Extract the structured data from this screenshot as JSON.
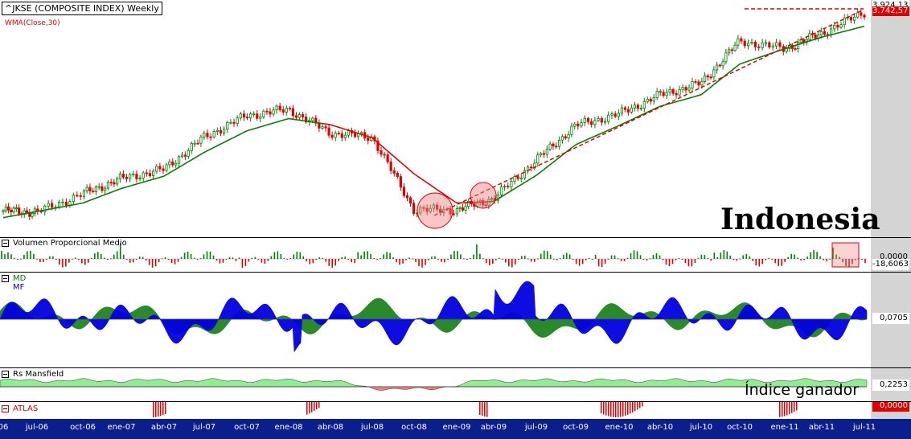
{
  "chart": {
    "title": "^JKSE (COMPOSITE INDEX) Weekly",
    "indicator_label": "WMA(Close,30)",
    "country_label": "Indonesia",
    "price_last": "3.924,13",
    "price_wma": "3.742,57"
  },
  "panels": {
    "volume": {
      "label": "Volumen Proporcional Medio",
      "value_top": "0,0000",
      "value_last": "-18,6063"
    },
    "md": {
      "label_md": "MD",
      "label_mf": "MF",
      "value_last": "0,0705"
    },
    "rs": {
      "label": "Rs Mansfield",
      "value_last": "0,2253",
      "annotation": "Índice ganador"
    },
    "atlas": {
      "label": "ATLAS",
      "value_last": "0,0000"
    }
  },
  "colors": {
    "up": "#008000",
    "down": "#e00000",
    "wma_green": "#007a00",
    "wma_red": "#e00000",
    "md_blue": "#0000e0",
    "md_green": "#2a8a2a",
    "rs_green": "#90ee90",
    "rs_red": "#f08080",
    "axis_bg": "#0a1e8c",
    "scale_bg": "#d4d4d4"
  },
  "x_axis_labels": [
    "06",
    "jul-06",
    "oct-06",
    "ene-07",
    "abr-07",
    "jul-07",
    "oct-07",
    "ene-08",
    "abr-08",
    "jul-08",
    "oct-08",
    "ene-09",
    "abr-09",
    "jul-09",
    "oct-09",
    "ene-10",
    "abr-10",
    "jul-10",
    "oct-10",
    "ene-11",
    "abr-11",
    "jul-11"
  ],
  "chart_data": {
    "type": "line",
    "title": "^JKSE (COMPOSITE INDEX) Weekly",
    "x": [
      "06",
      "jul-06",
      "oct-06",
      "ene-07",
      "abr-07",
      "jul-07",
      "oct-07",
      "ene-08",
      "abr-08",
      "jul-08",
      "oct-08",
      "ene-09",
      "abr-09",
      "jul-09",
      "oct-09",
      "ene-10",
      "abr-10",
      "jul-10",
      "oct-10",
      "ene-11",
      "abr-11",
      "jul-11"
    ],
    "series": [
      {
        "name": "^JKSE",
        "values": [
          1340,
          1320,
          1560,
          1760,
          1880,
          2300,
          2580,
          2660,
          2350,
          2300,
          1350,
          1350,
          1500,
          2000,
          2450,
          2600,
          2850,
          3000,
          3550,
          3450,
          3650,
          3924
        ]
      },
      {
        "name": "WMA(Close,30)",
        "values": [
          1250,
          1330,
          1440,
          1630,
          1790,
          2100,
          2380,
          2540,
          2460,
          2290,
          1820,
          1440,
          1460,
          1800,
          2200,
          2450,
          2700,
          2850,
          3250,
          3450,
          3600,
          3742
        ]
      }
    ],
    "ylim": [
      1100,
      4000
    ]
  }
}
